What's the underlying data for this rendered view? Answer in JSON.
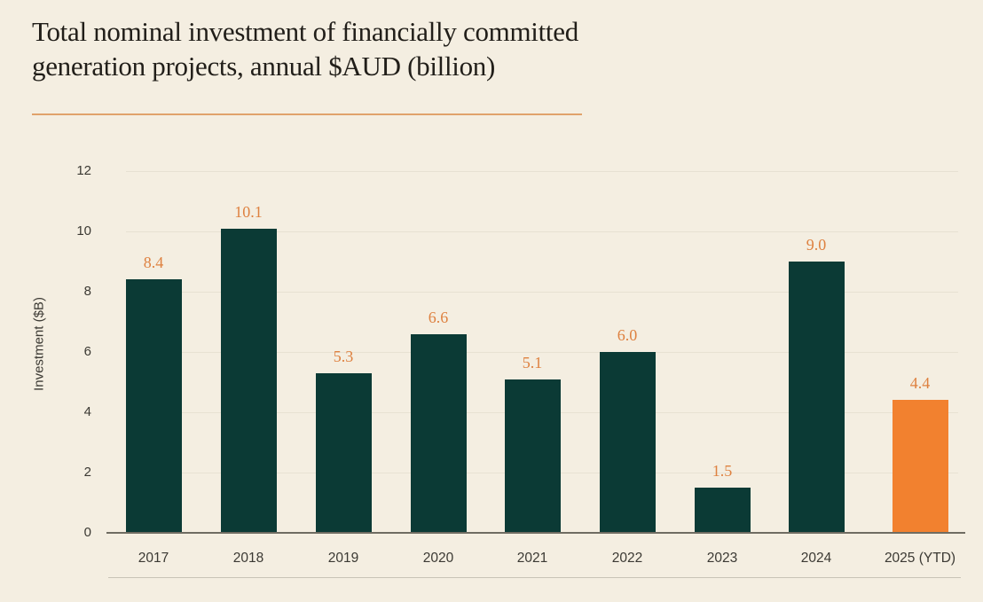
{
  "title": {
    "line1": "Total nominal investment of financially committed",
    "line2": "generation projects, annual $AUD (billion)"
  },
  "chart_data": {
    "type": "bar",
    "title": "Total nominal investment of financially committed generation projects, annual $AUD (billion)",
    "xlabel": "",
    "ylabel": "Investment ($B)",
    "categories": [
      "2017",
      "2018",
      "2019",
      "2020",
      "2021",
      "2022",
      "2023",
      "2024",
      "2025 (YTD)"
    ],
    "values": [
      8.4,
      10.1,
      5.3,
      6.6,
      5.1,
      6.0,
      1.5,
      9.0,
      4.4
    ],
    "value_labels": [
      "8.4",
      "10.1",
      "5.3",
      "6.6",
      "5.1",
      "6.0",
      "1.5",
      "9.0",
      "4.4"
    ],
    "yticks": [
      0,
      2,
      4,
      6,
      8,
      10,
      12
    ],
    "ylim": [
      0,
      12
    ],
    "grid": true,
    "legend": "none",
    "highlight_index": 8,
    "colors": {
      "bar": "#0b3a35",
      "highlight_bar": "#f2812f",
      "value_label": "#de8140",
      "title_text": "#211e19",
      "title_rule": "#e0a26b",
      "background": "#f4eee1",
      "gridline": "#e7e1d2",
      "axis_line": "#6f6c62",
      "tick_label": "#3b3933",
      "bottom_rule": "#c8c3b6"
    }
  }
}
